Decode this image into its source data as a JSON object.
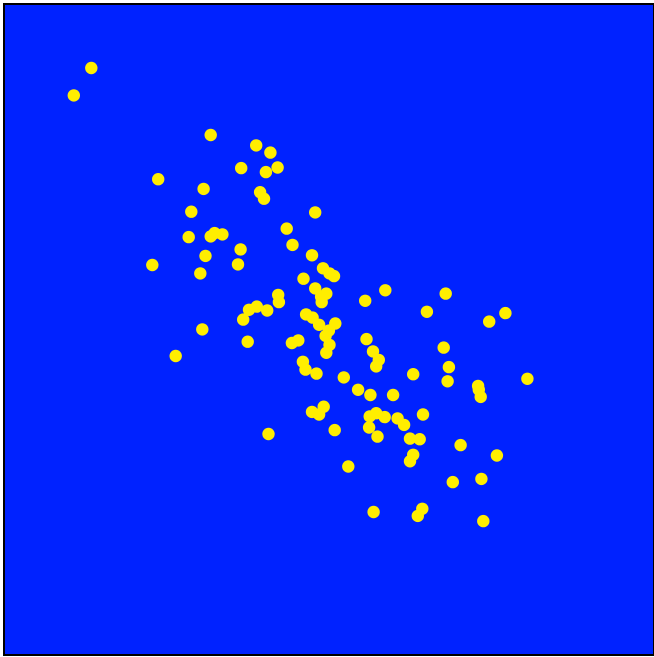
{
  "colors": {
    "plot_background": "#0022ff",
    "point_color": "#ffee00",
    "frame_color": "#000000"
  },
  "chart_data": {
    "type": "scatter",
    "title": "",
    "xlabel": "",
    "ylabel": "",
    "grid": false,
    "legend": "none",
    "xlim": [
      0,
      100
    ],
    "ylim": [
      0,
      100
    ],
    "series": [
      {
        "points": [
          [
            13.3,
            90.3
          ],
          [
            10.6,
            86.1
          ],
          [
            31.7,
            80.0
          ],
          [
            38.7,
            78.4
          ],
          [
            40.9,
            77.3
          ],
          [
            36.4,
            74.9
          ],
          [
            40.2,
            74.3
          ],
          [
            42.0,
            75.0
          ],
          [
            23.6,
            73.2
          ],
          [
            30.6,
            71.7
          ],
          [
            39.3,
            71.2
          ],
          [
            39.9,
            70.2
          ],
          [
            28.7,
            68.2
          ],
          [
            47.8,
            68.1
          ],
          [
            43.4,
            65.6
          ],
          [
            31.7,
            64.4
          ],
          [
            32.3,
            64.9
          ],
          [
            28.3,
            64.3
          ],
          [
            33.5,
            64.7
          ],
          [
            44.3,
            63.1
          ],
          [
            30.9,
            61.4
          ],
          [
            36.3,
            62.4
          ],
          [
            47.3,
            61.5
          ],
          [
            22.7,
            60.0
          ],
          [
            35.9,
            60.1
          ],
          [
            30.1,
            58.7
          ],
          [
            49.0,
            59.5
          ],
          [
            50.0,
            58.7
          ],
          [
            50.7,
            58.3
          ],
          [
            46.0,
            57.9
          ],
          [
            42.1,
            55.4
          ],
          [
            48.7,
            55.1
          ],
          [
            47.8,
            56.4
          ],
          [
            49.5,
            55.6
          ],
          [
            42.2,
            54.3
          ],
          [
            48.8,
            54.3
          ],
          [
            58.6,
            56.1
          ],
          [
            67.9,
            55.6
          ],
          [
            55.5,
            54.5
          ],
          [
            37.6,
            53.1
          ],
          [
            38.8,
            53.6
          ],
          [
            40.4,
            53.0
          ],
          [
            46.4,
            52.4
          ],
          [
            47.4,
            51.9
          ],
          [
            36.7,
            51.6
          ],
          [
            48.4,
            50.8
          ],
          [
            77.1,
            52.6
          ],
          [
            65.0,
            52.8
          ],
          [
            74.6,
            51.3
          ],
          [
            30.4,
            50.1
          ],
          [
            49.9,
            49.9
          ],
          [
            49.4,
            49.1
          ],
          [
            50.9,
            51.0
          ],
          [
            55.7,
            48.6
          ],
          [
            37.4,
            48.2
          ],
          [
            44.2,
            48.0
          ],
          [
            45.2,
            48.4
          ],
          [
            50.0,
            47.7
          ],
          [
            49.5,
            46.5
          ],
          [
            56.7,
            46.7
          ],
          [
            57.6,
            45.4
          ],
          [
            26.3,
            46.0
          ],
          [
            45.9,
            45.1
          ],
          [
            67.6,
            47.3
          ],
          [
            57.2,
            44.4
          ],
          [
            68.4,
            44.3
          ],
          [
            46.3,
            43.9
          ],
          [
            48.0,
            43.3
          ],
          [
            52.2,
            42.7
          ],
          [
            62.9,
            43.2
          ],
          [
            68.2,
            42.1
          ],
          [
            80.5,
            42.5
          ],
          [
            72.9,
            41.4
          ],
          [
            54.4,
            40.8
          ],
          [
            56.3,
            40.0
          ],
          [
            59.8,
            40.0
          ],
          [
            73.3,
            39.7
          ],
          [
            73.0,
            40.8
          ],
          [
            49.1,
            38.2
          ],
          [
            47.3,
            37.4
          ],
          [
            48.4,
            37.0
          ],
          [
            56.2,
            36.7
          ],
          [
            57.2,
            37.2
          ],
          [
            58.5,
            36.6
          ],
          [
            60.5,
            36.4
          ],
          [
            64.4,
            37.0
          ],
          [
            56.1,
            35.0
          ],
          [
            61.5,
            35.4
          ],
          [
            50.8,
            34.6
          ],
          [
            57.4,
            33.6
          ],
          [
            40.6,
            34.0
          ],
          [
            62.4,
            33.3
          ],
          [
            63.9,
            33.2
          ],
          [
            70.2,
            32.3
          ],
          [
            75.8,
            30.7
          ],
          [
            62.9,
            30.8
          ],
          [
            62.4,
            29.8
          ],
          [
            52.9,
            29.0
          ],
          [
            69.0,
            26.6
          ],
          [
            73.4,
            27.1
          ],
          [
            64.3,
            22.5
          ],
          [
            63.6,
            21.4
          ],
          [
            56.8,
            22.0
          ],
          [
            73.7,
            20.6
          ]
        ]
      }
    ]
  }
}
